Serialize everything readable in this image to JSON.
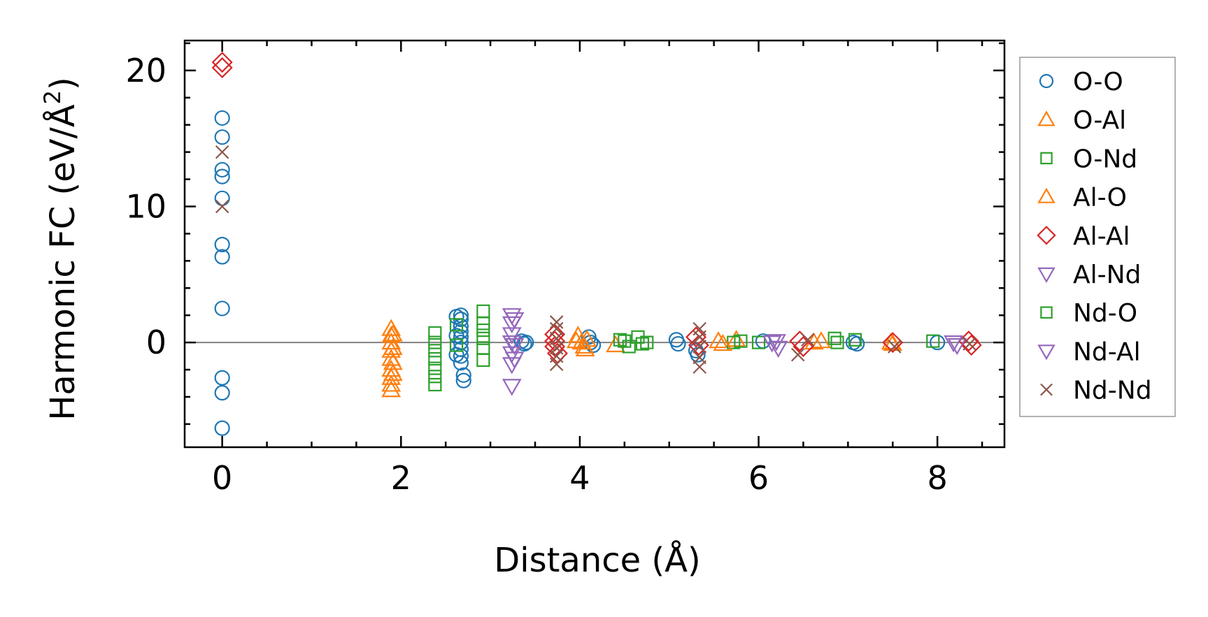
{
  "chart_data": {
    "type": "scatter",
    "title": "",
    "xlabel": "Distance (Å)",
    "ylabel_main": "Harmonic FC (eV/Å",
    "ylabel_sup": "2",
    "ylabel_close": ")",
    "xlim": [
      -0.42,
      8.75
    ],
    "ylim": [
      -7.7,
      22.2
    ],
    "x_ticks": [
      0,
      2,
      4,
      6,
      8
    ],
    "x_tick_labels": [
      "0",
      "2",
      "4",
      "6",
      "8"
    ],
    "x_minor_step": 0.5,
    "y_ticks": [
      0,
      10,
      20
    ],
    "y_tick_labels": [
      "0",
      "10",
      "20"
    ],
    "y_minor_step": 2,
    "zero_line": 0,
    "zero_line_color": "#808080",
    "legend_position": "right",
    "series": [
      {
        "name": "O-O",
        "marker": "circle",
        "color": "#1f77b4",
        "points": [
          [
            0,
            16.5
          ],
          [
            0,
            15.1
          ],
          [
            0,
            12.7
          ],
          [
            0,
            12.2
          ],
          [
            0,
            10.6
          ],
          [
            0,
            7.2
          ],
          [
            0,
            6.3
          ],
          [
            0,
            2.5
          ],
          [
            0,
            -2.6
          ],
          [
            0,
            -3.7
          ],
          [
            0,
            -6.3
          ],
          [
            2.67,
            2.0
          ],
          [
            2.67,
            1.7
          ],
          [
            2.67,
            1.2
          ],
          [
            2.67,
            0.8
          ],
          [
            2.67,
            0.4
          ],
          [
            2.67,
            0.0
          ],
          [
            2.67,
            -0.5
          ],
          [
            2.67,
            -1.0
          ],
          [
            2.67,
            -1.5
          ],
          [
            2.7,
            -2.4
          ],
          [
            2.7,
            -2.8
          ],
          [
            2.62,
            1.9
          ],
          [
            2.62,
            0.5
          ],
          [
            2.62,
            -0.9
          ],
          [
            3.35,
            0.1
          ],
          [
            3.38,
            -0.1
          ],
          [
            3.4,
            0.0
          ],
          [
            4.1,
            0.4
          ],
          [
            4.12,
            0.0
          ],
          [
            4.15,
            -0.2
          ],
          [
            5.08,
            0.2
          ],
          [
            5.1,
            -0.1
          ],
          [
            5.3,
            -0.6
          ],
          [
            5.32,
            -0.9
          ],
          [
            6.05,
            0.1
          ],
          [
            7.06,
            0.0
          ],
          [
            7.1,
            -0.1
          ],
          [
            8.0,
            0.0
          ]
        ]
      },
      {
        "name": "O-Al",
        "marker": "triangle-up",
        "color": "#ff7f0e",
        "points": [
          [
            1.89,
            1.0
          ],
          [
            1.89,
            0.5
          ],
          [
            1.89,
            0.0
          ],
          [
            1.89,
            -0.6
          ],
          [
            1.89,
            -1.2
          ],
          [
            1.89,
            -2.0
          ],
          [
            1.89,
            -2.6
          ],
          [
            1.89,
            -3.1
          ],
          [
            1.89,
            -3.5
          ],
          [
            3.98,
            0.5
          ],
          [
            4.02,
            0.0
          ],
          [
            4.06,
            -0.5
          ],
          [
            4.08,
            0.2
          ],
          [
            4.4,
            -0.2
          ],
          [
            5.55,
            0.1
          ],
          [
            5.75,
            0.2
          ],
          [
            6.62,
            0.0
          ],
          [
            7.48,
            0.0
          ]
        ]
      },
      {
        "name": "O-Nd",
        "marker": "square",
        "color": "#2ca02c",
        "points": [
          [
            2.38,
            0.7
          ],
          [
            2.38,
            0.0
          ],
          [
            2.38,
            -0.6
          ],
          [
            2.38,
            -1.2
          ],
          [
            2.38,
            -1.9
          ],
          [
            2.38,
            -2.5
          ],
          [
            2.38,
            -3.1
          ],
          [
            2.92,
            2.3
          ],
          [
            2.92,
            1.4
          ],
          [
            2.92,
            0.3
          ],
          [
            2.92,
            -0.4
          ],
          [
            2.92,
            -1.3
          ],
          [
            4.45,
            0.2
          ],
          [
            4.55,
            -0.3
          ],
          [
            4.65,
            0.4
          ],
          [
            4.75,
            0.0
          ],
          [
            5.72,
            0.0
          ],
          [
            6.0,
            0.0
          ],
          [
            6.85,
            0.3
          ],
          [
            7.08,
            0.2
          ]
        ]
      },
      {
        "name": "Al-O",
        "marker": "triangle-up",
        "color": "#ff7f0e",
        "points": [
          [
            1.91,
            0.6
          ],
          [
            1.91,
            -0.4
          ],
          [
            1.91,
            -1.5
          ],
          [
            1.91,
            -2.3
          ],
          [
            3.96,
            0.1
          ],
          [
            4.05,
            -0.3
          ],
          [
            5.6,
            -0.1
          ],
          [
            6.7,
            0.1
          ],
          [
            7.5,
            -0.1
          ]
        ]
      },
      {
        "name": "Al-Al",
        "marker": "diamond",
        "color": "#d62728",
        "points": [
          [
            0,
            20.6
          ],
          [
            0,
            20.2
          ],
          [
            3.72,
            0.6
          ],
          [
            3.72,
            0.1
          ],
          [
            3.72,
            -0.3
          ],
          [
            3.75,
            -0.8
          ],
          [
            5.3,
            0.4
          ],
          [
            5.33,
            -0.2
          ],
          [
            6.46,
            0.1
          ],
          [
            6.5,
            -0.3
          ],
          [
            7.5,
            0.0
          ],
          [
            8.35,
            0.1
          ],
          [
            8.38,
            -0.2
          ]
        ]
      },
      {
        "name": "Al-Nd",
        "marker": "triangle-down",
        "color": "#9467bd",
        "points": [
          [
            3.24,
            2.0
          ],
          [
            3.24,
            1.4
          ],
          [
            3.24,
            0.6
          ],
          [
            3.24,
            0.0
          ],
          [
            3.24,
            -0.8
          ],
          [
            3.24,
            -1.6
          ],
          [
            3.24,
            -3.2
          ],
          [
            6.2,
            0.1
          ],
          [
            6.22,
            -0.4
          ]
        ]
      },
      {
        "name": "Nd-O",
        "marker": "square",
        "color": "#2ca02c",
        "points": [
          [
            2.62,
            1.3
          ],
          [
            2.62,
            -0.2
          ],
          [
            2.92,
            0.9
          ],
          [
            4.5,
            0.1
          ],
          [
            4.7,
            -0.1
          ],
          [
            5.8,
            0.1
          ],
          [
            6.88,
            0.0
          ],
          [
            7.95,
            0.1
          ]
        ]
      },
      {
        "name": "Nd-Al",
        "marker": "triangle-down",
        "color": "#9467bd",
        "points": [
          [
            3.27,
            1.7
          ],
          [
            3.27,
            -0.2
          ],
          [
            3.27,
            -1.2
          ],
          [
            6.15,
            0.0
          ],
          [
            8.18,
            0.0
          ],
          [
            8.22,
            -0.2
          ]
        ]
      },
      {
        "name": "Nd-Nd",
        "marker": "x",
        "color": "#8c564b",
        "points": [
          [
            0,
            14.0
          ],
          [
            0,
            10.0
          ],
          [
            3.74,
            1.5
          ],
          [
            3.74,
            1.0
          ],
          [
            3.74,
            0.3
          ],
          [
            3.74,
            -0.4
          ],
          [
            3.74,
            -1.0
          ],
          [
            3.74,
            -1.6
          ],
          [
            5.34,
            1.0
          ],
          [
            5.34,
            0.4
          ],
          [
            5.34,
            -0.3
          ],
          [
            5.34,
            -1.1
          ],
          [
            5.34,
            -1.8
          ],
          [
            6.44,
            -0.9
          ],
          [
            6.55,
            0.2
          ],
          [
            7.52,
            -0.3
          ],
          [
            8.36,
            -0.1
          ]
        ]
      }
    ]
  }
}
